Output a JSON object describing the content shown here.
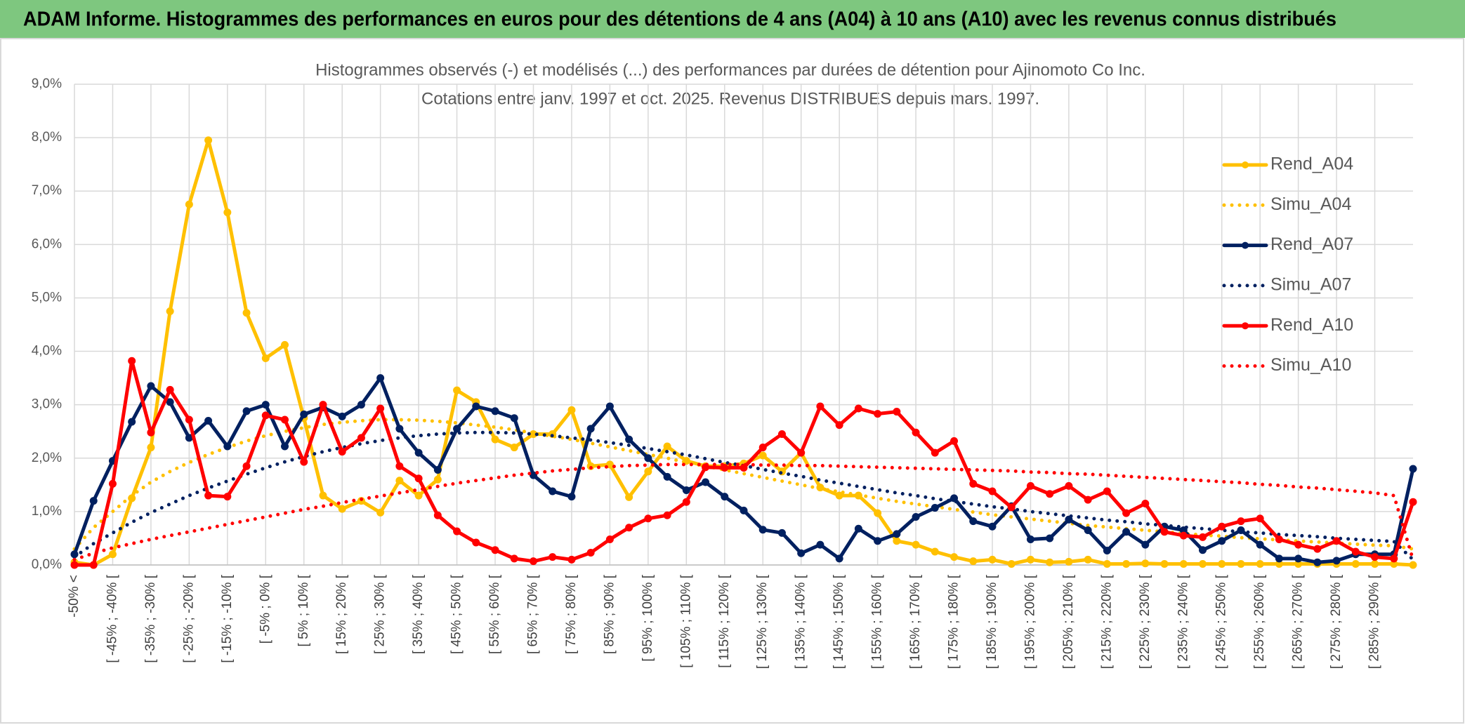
{
  "header": {
    "title": "ADAM Informe. Histogrammes des performances en euros pour des détentions de 4 ans (A04) à 10 ans (A10) avec les revenus connus distribués"
  },
  "chart_data": {
    "type": "line",
    "title": [
      "Histogrammes observés (-) et modélisés (...) des performances par durées de détention pour Ajinomoto Co Inc.",
      "Cotations entre janv. 1997 et oct. 2025. Revenus DISTRIBUES depuis mars. 1997."
    ],
    "categories": [
      "-50% <",
      null,
      "[ -45% ; -40% [",
      null,
      "[ -35% ; -30% [",
      null,
      "[ -25% ; -20% [",
      null,
      "[ -15% ; -10% [",
      null,
      "[ -5% ; 0% [",
      null,
      "[ 5% ; 10% [",
      null,
      "[ 15% ; 20% [",
      null,
      "[ 25% ; 30% [",
      null,
      "[ 35% ; 40% [",
      null,
      "[ 45% ; 50% [",
      null,
      "[ 55% ; 60% [",
      null,
      "[ 65% ; 70% [",
      null,
      "[ 75% ; 80% [",
      null,
      "[ 85% ; 90% [",
      null,
      "[ 95% ; 100% [",
      null,
      "[ 105% ; 110% [",
      null,
      "[ 115% ; 120% [",
      null,
      "[ 125% ; 130% [",
      null,
      "[ 135% ; 140% [",
      null,
      "[ 145% ; 150% [",
      null,
      "[ 155% ; 160% [",
      null,
      "[ 165% ; 170% [",
      null,
      "[ 175% ; 180% [",
      null,
      "[ 185% ; 190% [",
      null,
      "[ 195% ; 200% [",
      null,
      "[ 205% ; 210% [",
      null,
      "[ 215% ; 220% [",
      null,
      "[ 225% ; 230% [",
      null,
      "[ 235% ; 240% [",
      null,
      "[ 245% ; 250% [",
      null,
      "[ 255% ; 260% [",
      null,
      "[ 265% ; 270% [",
      null,
      "[ 275% ; 280% [",
      null,
      "[ 285% ; 290% [",
      null,
      null
    ],
    "ylim": [
      0,
      9
    ],
    "yticks": [
      {
        "value": 0,
        "label": "0,0%"
      },
      {
        "value": 1,
        "label": "1,0%"
      },
      {
        "value": 2,
        "label": "2,0%"
      },
      {
        "value": 3,
        "label": "3,0%"
      },
      {
        "value": 4,
        "label": "4,0%"
      },
      {
        "value": 5,
        "label": "5,0%"
      },
      {
        "value": 6,
        "label": "6,0%"
      },
      {
        "value": 7,
        "label": "7,0%"
      },
      {
        "value": 8,
        "label": "8,0%"
      },
      {
        "value": 9,
        "label": "9,0%"
      }
    ],
    "grid": true,
    "legend": "right",
    "series": [
      {
        "name": "Rend_A04",
        "color": "#ffc000",
        "style": "solid",
        "marker": true,
        "values": [
          0.05,
          0.0,
          0.2,
          1.25,
          2.2,
          4.75,
          6.75,
          7.95,
          6.6,
          4.72,
          3.87,
          4.12,
          2.75,
          1.3,
          1.05,
          1.2,
          0.98,
          1.58,
          1.3,
          1.6,
          3.27,
          3.05,
          2.35,
          2.2,
          2.45,
          2.45,
          2.9,
          1.85,
          1.88,
          1.27,
          1.75,
          2.22,
          1.95,
          1.85,
          1.85,
          1.9,
          2.05,
          1.75,
          2.1,
          1.45,
          1.3,
          1.3,
          0.97,
          0.45,
          0.38,
          0.25,
          0.15,
          0.07,
          0.1,
          0.02,
          0.1,
          0.05,
          0.06,
          0.1,
          0.02,
          0.02,
          0.03,
          0.02,
          0.02,
          0.02,
          0.02,
          0.02,
          0.02,
          0.02,
          0.02,
          0.02,
          0.02,
          0.02,
          0.02,
          0.02,
          0.0
        ]
      },
      {
        "name": "Simu_A04",
        "color": "#ffc000",
        "style": "dotted",
        "marker": false,
        "values": [
          0.3,
          0.7,
          1.0,
          1.3,
          1.55,
          1.75,
          1.92,
          2.07,
          2.2,
          2.32,
          2.42,
          2.5,
          2.57,
          2.63,
          2.67,
          2.7,
          2.72,
          2.72,
          2.71,
          2.69,
          2.66,
          2.62,
          2.58,
          2.53,
          2.47,
          2.41,
          2.35,
          2.28,
          2.21,
          2.14,
          2.07,
          2.0,
          1.92,
          1.85,
          1.78,
          1.71,
          1.64,
          1.57,
          1.5,
          1.43,
          1.37,
          1.31,
          1.25,
          1.19,
          1.14,
          1.09,
          1.04,
          0.99,
          0.94,
          0.9,
          0.86,
          0.82,
          0.78,
          0.74,
          0.71,
          0.68,
          0.65,
          0.62,
          0.59,
          0.56,
          0.54,
          0.51,
          0.49,
          0.47,
          0.45,
          0.43,
          0.41,
          0.39,
          0.37,
          0.36,
          0.3
        ]
      },
      {
        "name": "Rend_A07",
        "color": "#002060",
        "style": "solid",
        "marker": true,
        "values": [
          0.2,
          1.2,
          1.95,
          2.68,
          3.35,
          3.05,
          2.38,
          2.7,
          2.22,
          2.88,
          3.0,
          2.22,
          2.82,
          2.95,
          2.78,
          3.0,
          3.5,
          2.55,
          2.1,
          1.78,
          2.55,
          2.97,
          2.88,
          2.75,
          1.68,
          1.38,
          1.28,
          2.55,
          2.97,
          2.35,
          2.0,
          1.65,
          1.4,
          1.55,
          1.28,
          1.02,
          0.66,
          0.6,
          0.22,
          0.38,
          0.12,
          0.68,
          0.45,
          0.58,
          0.9,
          1.07,
          1.25,
          0.82,
          0.72,
          1.1,
          0.48,
          0.5,
          0.85,
          0.65,
          0.27,
          0.62,
          0.38,
          0.72,
          0.65,
          0.28,
          0.45,
          0.65,
          0.38,
          0.12,
          0.12,
          0.05,
          0.08,
          0.2,
          0.2,
          0.2,
          1.8
        ]
      },
      {
        "name": "Simu_A07",
        "color": "#002060",
        "style": "dotted",
        "marker": false,
        "values": [
          0.15,
          0.4,
          0.6,
          0.8,
          0.98,
          1.14,
          1.3,
          1.44,
          1.57,
          1.7,
          1.82,
          1.93,
          2.03,
          2.12,
          2.2,
          2.27,
          2.33,
          2.38,
          2.42,
          2.45,
          2.47,
          2.48,
          2.48,
          2.47,
          2.45,
          2.42,
          2.38,
          2.34,
          2.29,
          2.24,
          2.18,
          2.12,
          2.06,
          1.99,
          1.92,
          1.86,
          1.79,
          1.72,
          1.66,
          1.59,
          1.53,
          1.47,
          1.41,
          1.35,
          1.3,
          1.24,
          1.19,
          1.14,
          1.09,
          1.05,
          1.0,
          0.96,
          0.92,
          0.88,
          0.84,
          0.81,
          0.77,
          0.74,
          0.71,
          0.68,
          0.65,
          0.62,
          0.6,
          0.57,
          0.55,
          0.53,
          0.5,
          0.48,
          0.46,
          0.44,
          0.1
        ]
      },
      {
        "name": "Rend_A10",
        "color": "#ff0000",
        "style": "solid",
        "marker": true,
        "values": [
          0.0,
          0.0,
          1.52,
          3.82,
          2.48,
          3.28,
          2.72,
          1.3,
          1.28,
          1.85,
          2.8,
          2.72,
          1.93,
          3.0,
          2.12,
          2.38,
          2.93,
          1.85,
          1.62,
          0.93,
          0.63,
          0.42,
          0.28,
          0.12,
          0.07,
          0.15,
          0.1,
          0.23,
          0.48,
          0.7,
          0.87,
          0.93,
          1.18,
          1.83,
          1.82,
          1.82,
          2.2,
          2.45,
          2.1,
          2.97,
          2.62,
          2.93,
          2.83,
          2.87,
          2.48,
          2.1,
          2.32,
          1.52,
          1.38,
          1.08,
          1.48,
          1.33,
          1.48,
          1.22,
          1.38,
          0.97,
          1.15,
          0.62,
          0.55,
          0.52,
          0.72,
          0.82,
          0.87,
          0.48,
          0.38,
          0.3,
          0.45,
          0.25,
          0.15,
          0.12,
          1.18
        ]
      },
      {
        "name": "Simu_A10",
        "color": "#ff0000",
        "style": "dotted",
        "marker": false,
        "values": [
          0.1,
          0.22,
          0.32,
          0.4,
          0.48,
          0.55,
          0.62,
          0.69,
          0.76,
          0.83,
          0.9,
          0.97,
          1.04,
          1.1,
          1.17,
          1.23,
          1.29,
          1.35,
          1.41,
          1.47,
          1.53,
          1.58,
          1.63,
          1.68,
          1.72,
          1.76,
          1.79,
          1.82,
          1.84,
          1.86,
          1.87,
          1.88,
          1.88,
          1.88,
          1.88,
          1.88,
          1.87,
          1.87,
          1.86,
          1.86,
          1.85,
          1.84,
          1.83,
          1.82,
          1.81,
          1.8,
          1.79,
          1.78,
          1.77,
          1.76,
          1.74,
          1.73,
          1.71,
          1.7,
          1.68,
          1.66,
          1.64,
          1.62,
          1.6,
          1.58,
          1.56,
          1.54,
          1.51,
          1.49,
          1.46,
          1.44,
          1.41,
          1.38,
          1.35,
          1.3,
          0.1
        ]
      }
    ]
  }
}
